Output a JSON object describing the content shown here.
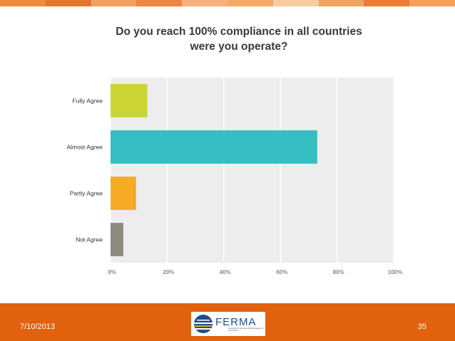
{
  "slide": {
    "date": "7/10/2013",
    "page_number": "35"
  },
  "logo": {
    "name": "FERMA",
    "tagline": "Federation of European Risk Management Associations"
  },
  "colors": {
    "footer": "#e1610f",
    "strip": [
      "#f08a3c",
      "#e8732a",
      "#f2a060",
      "#ee8540",
      "#f6b27e",
      "#f3a866",
      "#f9cba0",
      "#f2a463",
      "#ec7b33",
      "#f4a05a"
    ],
    "plot_background": "#ededed",
    "gridline": "#ffffff"
  },
  "chart_data": {
    "type": "bar",
    "orientation": "horizontal",
    "title": "Do you reach 100% compliance in all countries were you operate?",
    "categories": [
      "Fully Agree",
      "Almost Agree",
      "Partly Agree",
      "Not Agree"
    ],
    "values": [
      13,
      73,
      9,
      4.5
    ],
    "unit": "%",
    "bar_colors": [
      "#cbd534",
      "#34bec1",
      "#f6aa26",
      "#8c8a7c"
    ],
    "xlim": [
      0,
      100
    ],
    "xticks": [
      "0%",
      "20%",
      "40%",
      "60%",
      "80%",
      "100%"
    ],
    "xtick_values": [
      0,
      20,
      40,
      60,
      80,
      100
    ],
    "grid": true,
    "legend": "none"
  }
}
